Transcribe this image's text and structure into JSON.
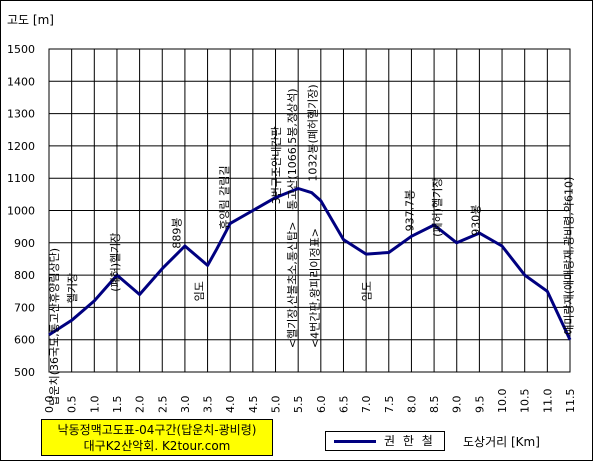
{
  "chart_data": {
    "type": "line",
    "ylabel": "고도 [m]",
    "xlabel": "도상거리 [Km]",
    "ylim": [
      500,
      1500
    ],
    "yticks": [
      "500",
      "600",
      "700",
      "800",
      "900",
      "1000",
      "1100",
      "1200",
      "1300",
      "1400",
      "1500"
    ],
    "xlim": [
      0.0,
      11.5
    ],
    "xticks": [
      "0.0",
      "0.5",
      "1.0",
      "1.5",
      "2.0",
      "2.5",
      "3.0",
      "3.5",
      "4.0",
      "4.5",
      "5.0",
      "5.5",
      "6.0",
      "6.5",
      "7.0",
      "7.5",
      "8.0",
      "8.5",
      "9.0",
      "9.5",
      "10.0",
      "10.5",
      "11.0",
      "11.5"
    ],
    "grid": true,
    "series": [
      {
        "name": "권 한 철",
        "color": "#000080",
        "points": [
          [
            0.0,
            615
          ],
          [
            0.5,
            660
          ],
          [
            1.0,
            720
          ],
          [
            1.5,
            800
          ],
          [
            2.0,
            740
          ],
          [
            2.5,
            820
          ],
          [
            3.0,
            890
          ],
          [
            3.5,
            830
          ],
          [
            3.7,
            880
          ],
          [
            4.0,
            960
          ],
          [
            4.5,
            1000
          ],
          [
            5.0,
            1040
          ],
          [
            5.5,
            1068
          ],
          [
            5.8,
            1055
          ],
          [
            6.0,
            1030
          ],
          [
            6.5,
            910
          ],
          [
            7.0,
            865
          ],
          [
            7.5,
            870
          ],
          [
            8.0,
            920
          ],
          [
            8.5,
            955
          ],
          [
            9.0,
            900
          ],
          [
            9.5,
            930
          ],
          [
            10.0,
            890
          ],
          [
            10.5,
            800
          ],
          [
            11.0,
            750
          ],
          [
            11.5,
            600
          ]
        ]
      }
    ],
    "annotations": [
      {
        "text": "답운치(36국도,통고산휴양림상단)",
        "x": 0.2,
        "y": 640
      },
      {
        "text": "헬기장",
        "x": 0.6,
        "y": 760
      },
      {
        "text": "(폐허)헬기장",
        "x": 1.55,
        "y": 840
      },
      {
        "text": "889봉",
        "x": 2.9,
        "y": 930
      },
      {
        "text": "임도",
        "x": 3.4,
        "y": 750
      },
      {
        "text": "휴양림 갈림길",
        "x": 3.95,
        "y": 1040
      },
      {
        "text": "3번구조안내간판",
        "x": 5.1,
        "y": 1140
      },
      {
        "text": "통고산(1066.5봉,정상석)",
        "x": 5.45,
        "y": 1190
      },
      {
        "text": "1032봉(폐허헬기장)",
        "x": 5.9,
        "y": 1240
      },
      {
        "text": "<헬기장,산불초소,통신탑>",
        "x": 5.45,
        "y": 770
      },
      {
        "text": "<4번간판,왕피리이정표>",
        "x": 5.95,
        "y": 760
      },
      {
        "text": "임도",
        "x": 7.1,
        "y": 750
      },
      {
        "text": "937.7봉",
        "x": 8.05,
        "y": 1000
      },
      {
        "text": "(폐허)헬기장",
        "x": 8.65,
        "y": 1010
      },
      {
        "text": "930봉",
        "x": 9.5,
        "y": 970
      },
      {
        "text": "애미랑재(애매랑재,광비령,약610)",
        "x": 11.55,
        "y": 860
      }
    ]
  },
  "credit": {
    "line1": "낙동정맥고도표-04구간(답운치-광비령)",
    "line2": "대구K2산악회. K2tour.com"
  },
  "legend": {
    "label": "권 한 철"
  }
}
